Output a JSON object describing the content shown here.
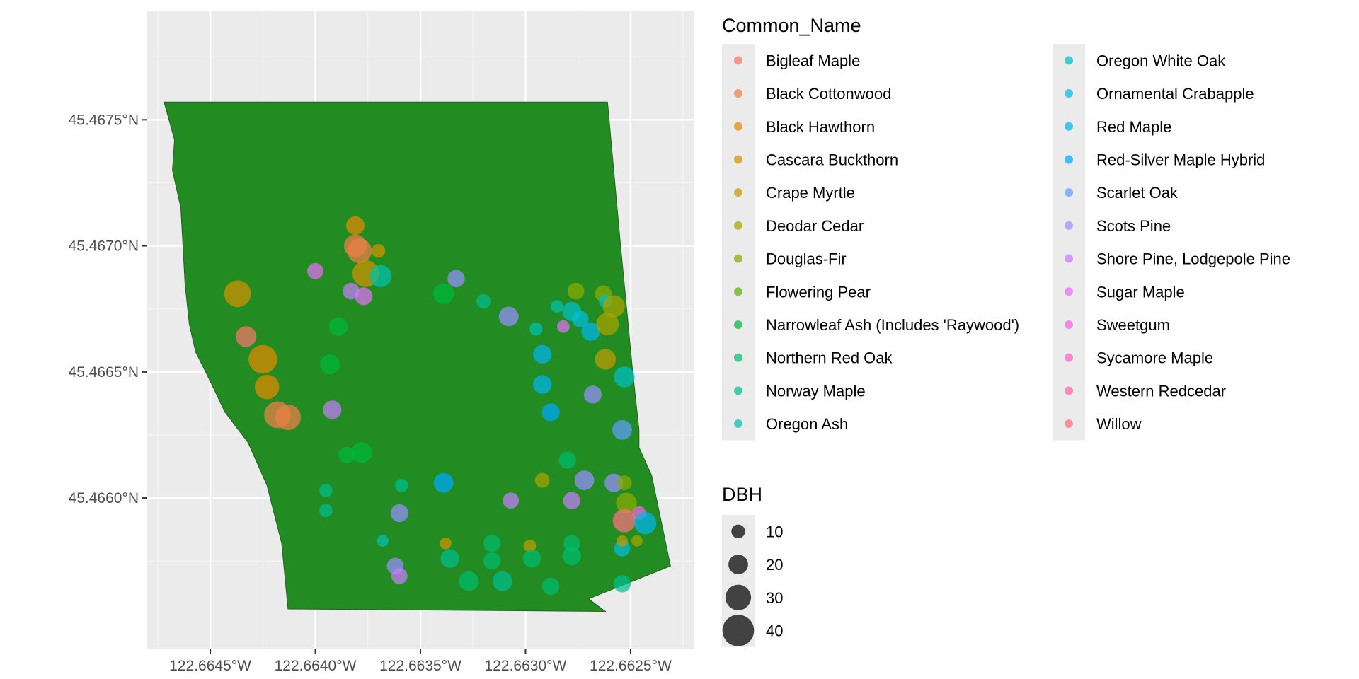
{
  "chart_data": {
    "type": "scatter",
    "subtype": "map with tree points over a park polygon",
    "xlim": [
      -122.6648,
      -122.6622
    ],
    "ylim": [
      45.4654,
      45.46793
    ],
    "x_ticks": [
      {
        "value": -122.6645,
        "label": "122.6645°W"
      },
      {
        "value": -122.664,
        "label": "122.6640°W"
      },
      {
        "value": -122.6635,
        "label": "122.6635°W"
      },
      {
        "value": -122.663,
        "label": "122.6630°W"
      },
      {
        "value": -122.6625,
        "label": "122.6625°W"
      }
    ],
    "y_ticks": [
      {
        "value": 45.466,
        "label": "45.4660°N"
      },
      {
        "value": 45.4665,
        "label": "45.4665°N"
      },
      {
        "value": 45.467,
        "label": "45.4670°N"
      },
      {
        "value": 45.4675,
        "label": "45.4675°N"
      }
    ],
    "polygon": {
      "fill": "#228b22",
      "points": [
        [
          -122.66472,
          45.46757
        ],
        [
          -122.66261,
          45.46757
        ],
        [
          -122.66255,
          45.46702
        ],
        [
          -122.66249,
          45.4665
        ],
        [
          -122.66246,
          45.46627
        ],
        [
          -122.66246,
          45.4662
        ],
        [
          -122.6624,
          45.46609
        ],
        [
          -122.66231,
          45.46573
        ],
        [
          -122.6627,
          45.4656
        ],
        [
          -122.66262,
          45.46555
        ],
        [
          -122.66413,
          45.46556
        ],
        [
          -122.66416,
          45.46582
        ],
        [
          -122.66423,
          45.46605
        ],
        [
          -122.66432,
          45.46622
        ],
        [
          -122.66443,
          45.46634
        ],
        [
          -122.66451,
          45.46648
        ],
        [
          -122.66457,
          45.46658
        ],
        [
          -122.6646,
          45.46669
        ],
        [
          -122.66462,
          45.46685
        ],
        [
          -122.66463,
          45.467
        ],
        [
          -122.66464,
          45.46715
        ],
        [
          -122.66468,
          45.4673
        ],
        [
          -122.66467,
          45.46742
        ]
      ]
    },
    "legend_species": {
      "title": "Common_Name",
      "items": [
        {
          "label": "Bigleaf Maple",
          "color": "#F8766D"
        },
        {
          "label": "Black Cottonwood",
          "color": "#EF7F46"
        },
        {
          "label": "Black Hawthorn",
          "color": "#E38900"
        },
        {
          "label": "Cascara Buckthorn",
          "color": "#D39200"
        },
        {
          "label": "Crape Myrtle",
          "color": "#BF9B00"
        },
        {
          "label": "Deodar Cedar",
          "color": "#A9A300"
        },
        {
          "label": "Douglas-Fir",
          "color": "#8CAB00"
        },
        {
          "label": "Flowering Pear",
          "color": "#5EB300"
        },
        {
          "label": "Narrowleaf Ash (Includes 'Raywood')",
          "color": "#00B93A"
        },
        {
          "label": "Northern Red Oak",
          "color": "#00BD6D"
        },
        {
          "label": "Norway Maple",
          "color": "#00BF90"
        },
        {
          "label": "Oregon Ash",
          "color": "#00C0AE"
        },
        {
          "label": "Oregon White Oak",
          "color": "#00BFC6"
        },
        {
          "label": "Ornamental Crabapple",
          "color": "#00BCDD"
        },
        {
          "label": "Red Maple",
          "color": "#00B5F0"
        },
        {
          "label": "Red-Silver Maple Hybrid",
          "color": "#00A9FF"
        },
        {
          "label": "Scarlet Oak",
          "color": "#619CFF"
        },
        {
          "label": "Scots Pine",
          "color": "#9A8EFF"
        },
        {
          "label": "Shore Pine, Lodgepole Pine",
          "color": "#C77CFF"
        },
        {
          "label": "Sugar Maple",
          "color": "#E46EF6"
        },
        {
          "label": "Sweetgum",
          "color": "#F564E3"
        },
        {
          "label": "Sycamore Maple",
          "color": "#FF63CB"
        },
        {
          "label": "Western Redcedar",
          "color": "#FF66A8"
        },
        {
          "label": "Willow",
          "color": "#FC717F"
        }
      ]
    },
    "legend_size": {
      "title": "DBH",
      "items": [
        {
          "label": "10",
          "value": 10
        },
        {
          "label": "20",
          "value": 20
        },
        {
          "label": "30",
          "value": 30
        },
        {
          "label": "40",
          "value": 40
        }
      ]
    },
    "points": [
      {
        "x": -122.66381,
        "y": 45.46708,
        "s": 2,
        "dbh": 18
      },
      {
        "x": -122.66381,
        "y": 45.467,
        "s": 1,
        "dbh": 25
      },
      {
        "x": -122.66379,
        "y": 45.46698,
        "s": 1,
        "dbh": 28
      },
      {
        "x": -122.66376,
        "y": 45.46689,
        "s": 3,
        "dbh": 32
      },
      {
        "x": -122.6637,
        "y": 45.46698,
        "s": 3,
        "dbh": 10
      },
      {
        "x": -122.66437,
        "y": 45.46681,
        "s": 3,
        "dbh": 32
      },
      {
        "x": -122.66433,
        "y": 45.46664,
        "s": 0,
        "dbh": 22
      },
      {
        "x": -122.66425,
        "y": 45.46655,
        "s": 2,
        "dbh": 35
      },
      {
        "x": -122.66423,
        "y": 45.46644,
        "s": 2,
        "dbh": 28
      },
      {
        "x": -122.66418,
        "y": 45.46633,
        "s": 1,
        "dbh": 32
      },
      {
        "x": -122.66413,
        "y": 45.46632,
        "s": 1,
        "dbh": 30
      },
      {
        "x": -122.664,
        "y": 45.4669,
        "s": 19,
        "dbh": 14
      },
      {
        "x": -122.66377,
        "y": 45.4668,
        "s": 19,
        "dbh": 17
      },
      {
        "x": -122.66383,
        "y": 45.46682,
        "s": 18,
        "dbh": 15
      },
      {
        "x": -122.66392,
        "y": 45.46635,
        "s": 18,
        "dbh": 18
      },
      {
        "x": -122.66369,
        "y": 45.46688,
        "s": 11,
        "dbh": 24
      },
      {
        "x": -122.66389,
        "y": 45.46668,
        "s": 8,
        "dbh": 18
      },
      {
        "x": -122.66393,
        "y": 45.46653,
        "s": 8,
        "dbh": 20
      },
      {
        "x": -122.66385,
        "y": 45.46617,
        "s": 8,
        "dbh": 15
      },
      {
        "x": -122.66378,
        "y": 45.46618,
        "s": 8,
        "dbh": 22
      },
      {
        "x": -122.66339,
        "y": 45.46681,
        "s": 8,
        "dbh": 22
      },
      {
        "x": -122.66333,
        "y": 45.46687,
        "s": 17,
        "dbh": 16
      },
      {
        "x": -122.6632,
        "y": 45.46678,
        "s": 10,
        "dbh": 11
      },
      {
        "x": -122.66308,
        "y": 45.46672,
        "s": 17,
        "dbh": 20
      },
      {
        "x": -122.66295,
        "y": 45.46667,
        "s": 11,
        "dbh": 9
      },
      {
        "x": -122.66285,
        "y": 45.46676,
        "s": 11,
        "dbh": 8
      },
      {
        "x": -122.66282,
        "y": 45.46668,
        "s": 19,
        "dbh": 8
      },
      {
        "x": -122.66278,
        "y": 45.46674,
        "s": 12,
        "dbh": 19
      },
      {
        "x": -122.66274,
        "y": 45.46671,
        "s": 13,
        "dbh": 15
      },
      {
        "x": -122.66269,
        "y": 45.46666,
        "s": 14,
        "dbh": 18
      },
      {
        "x": -122.66276,
        "y": 45.46682,
        "s": 6,
        "dbh": 15
      },
      {
        "x": -122.66263,
        "y": 45.46681,
        "s": 6,
        "dbh": 15
      },
      {
        "x": -122.66262,
        "y": 45.46678,
        "s": 12,
        "dbh": 9
      },
      {
        "x": -122.66258,
        "y": 45.46676,
        "s": 5,
        "dbh": 24
      },
      {
        "x": -122.66261,
        "y": 45.46669,
        "s": 5,
        "dbh": 25
      },
      {
        "x": -122.66262,
        "y": 45.46655,
        "s": 4,
        "dbh": 22
      },
      {
        "x": -122.66253,
        "y": 45.46648,
        "s": 12,
        "dbh": 22
      },
      {
        "x": -122.66292,
        "y": 45.46657,
        "s": 14,
        "dbh": 18
      },
      {
        "x": -122.66292,
        "y": 45.46645,
        "s": 14,
        "dbh": 18
      },
      {
        "x": -122.66288,
        "y": 45.46634,
        "s": 15,
        "dbh": 17
      },
      {
        "x": -122.66268,
        "y": 45.46641,
        "s": 17,
        "dbh": 17
      },
      {
        "x": -122.66254,
        "y": 45.46627,
        "s": 16,
        "dbh": 20
      },
      {
        "x": -122.6628,
        "y": 45.46615,
        "s": 9,
        "dbh": 16
      },
      {
        "x": -122.66292,
        "y": 45.46607,
        "s": 5,
        "dbh": 12
      },
      {
        "x": -122.66272,
        "y": 45.46607,
        "s": 17,
        "dbh": 20
      },
      {
        "x": -122.66258,
        "y": 45.46606,
        "s": 17,
        "dbh": 18
      },
      {
        "x": -122.66253,
        "y": 45.46606,
        "s": 6,
        "dbh": 12
      },
      {
        "x": -122.66252,
        "y": 45.46598,
        "s": 6,
        "dbh": 22
      },
      {
        "x": -122.66253,
        "y": 45.46591,
        "s": 23,
        "dbh": 26
      },
      {
        "x": -122.66246,
        "y": 45.46594,
        "s": 20,
        "dbh": 10
      },
      {
        "x": -122.66243,
        "y": 45.4659,
        "s": 14,
        "dbh": 24
      },
      {
        "x": -122.66278,
        "y": 45.46599,
        "s": 18,
        "dbh": 16
      },
      {
        "x": -122.66307,
        "y": 45.46599,
        "s": 18,
        "dbh": 14
      },
      {
        "x": -122.66339,
        "y": 45.46606,
        "s": 15,
        "dbh": 20
      },
      {
        "x": -122.66359,
        "y": 45.46605,
        "s": 10,
        "dbh": 9
      },
      {
        "x": -122.6636,
        "y": 45.46594,
        "s": 17,
        "dbh": 17
      },
      {
        "x": -122.66395,
        "y": 45.46603,
        "s": 10,
        "dbh": 9
      },
      {
        "x": -122.66395,
        "y": 45.46595,
        "s": 10,
        "dbh": 9
      },
      {
        "x": -122.66368,
        "y": 45.46583,
        "s": 11,
        "dbh": 7
      },
      {
        "x": -122.66362,
        "y": 45.46573,
        "s": 17,
        "dbh": 15
      },
      {
        "x": -122.6636,
        "y": 45.46569,
        "s": 18,
        "dbh": 14
      },
      {
        "x": -122.66338,
        "y": 45.46582,
        "s": 3,
        "dbh": 7
      },
      {
        "x": -122.66336,
        "y": 45.46576,
        "s": 10,
        "dbh": 18
      },
      {
        "x": -122.66327,
        "y": 45.46567,
        "s": 9,
        "dbh": 20
      },
      {
        "x": -122.66316,
        "y": 45.46582,
        "s": 9,
        "dbh": 16
      },
      {
        "x": -122.66316,
        "y": 45.46575,
        "s": 9,
        "dbh": 16
      },
      {
        "x": -122.66311,
        "y": 45.46567,
        "s": 10,
        "dbh": 20
      },
      {
        "x": -122.66298,
        "y": 45.46581,
        "s": 4,
        "dbh": 8
      },
      {
        "x": -122.66297,
        "y": 45.46576,
        "s": 9,
        "dbh": 17
      },
      {
        "x": -122.66288,
        "y": 45.46565,
        "s": 9,
        "dbh": 16
      },
      {
        "x": -122.66278,
        "y": 45.46582,
        "s": 9,
        "dbh": 15
      },
      {
        "x": -122.66278,
        "y": 45.46577,
        "s": 9,
        "dbh": 18
      },
      {
        "x": -122.66254,
        "y": 45.4658,
        "s": 13,
        "dbh": 14
      },
      {
        "x": -122.66254,
        "y": 45.46583,
        "s": 4,
        "dbh": 6
      },
      {
        "x": -122.66247,
        "y": 45.46583,
        "s": 5,
        "dbh": 6
      },
      {
        "x": -122.66254,
        "y": 45.46566,
        "s": 10,
        "dbh": 16
      }
    ]
  }
}
